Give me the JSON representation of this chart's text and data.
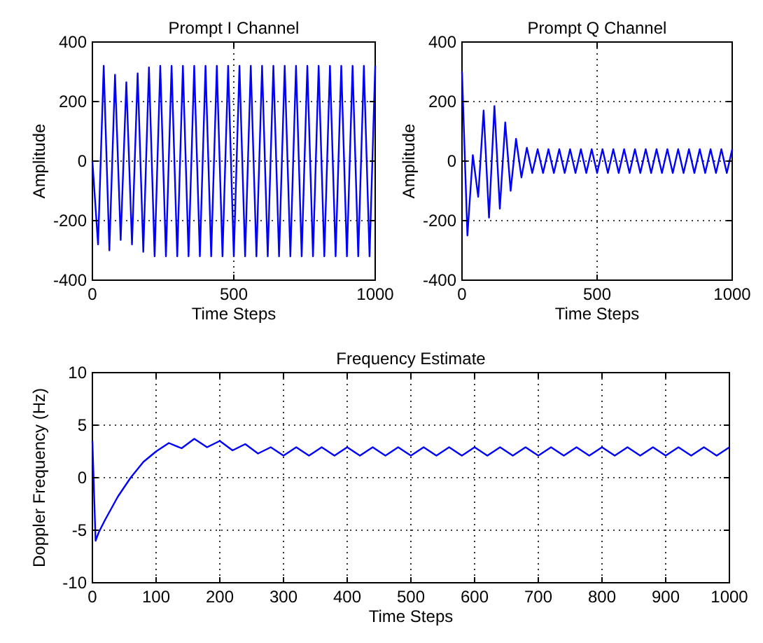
{
  "chart_data": [
    {
      "type": "line",
      "title": "Prompt I Channel",
      "xlabel": "Time Steps",
      "ylabel": "Amplitude",
      "xlim": [
        0,
        1000
      ],
      "ylim": [
        -400,
        400
      ],
      "xticks": [
        0,
        500,
        1000
      ],
      "yticks": [
        -400,
        -200,
        0,
        200,
        400
      ],
      "grid": true,
      "series": [
        {
          "color": "#0000ff",
          "x": [
            0,
            20,
            40,
            60,
            80,
            100,
            120,
            140,
            160,
            180,
            200,
            220,
            240,
            260,
            280,
            300,
            320,
            340,
            360,
            380,
            400,
            420,
            440,
            460,
            480,
            500,
            520,
            540,
            560,
            580,
            600,
            620,
            640,
            660,
            680,
            700,
            720,
            740,
            760,
            780,
            800,
            820,
            840,
            860,
            880,
            900,
            920,
            940,
            960,
            980,
            1000
          ],
          "values": [
            0,
            -280,
            320,
            -300,
            290,
            -265,
            265,
            -280,
            295,
            -305,
            315,
            -320,
            320,
            -320,
            320,
            -320,
            320,
            -320,
            320,
            -320,
            320,
            -320,
            320,
            -320,
            320,
            -320,
            320,
            -320,
            320,
            -320,
            320,
            -320,
            320,
            -320,
            320,
            -320,
            320,
            -320,
            320,
            -320,
            320,
            -320,
            320,
            -320,
            320,
            -320,
            320,
            -320,
            320,
            -320,
            320
          ]
        }
      ]
    },
    {
      "type": "line",
      "title": "Prompt Q Channel",
      "xlabel": "Time Steps",
      "ylabel": "Amplitude",
      "xlim": [
        0,
        1000
      ],
      "ylim": [
        -400,
        400
      ],
      "xticks": [
        0,
        500,
        1000
      ],
      "yticks": [
        -400,
        -200,
        0,
        200,
        400
      ],
      "grid": true,
      "series": [
        {
          "color": "#0000ff",
          "x": [
            0,
            20,
            40,
            60,
            80,
            100,
            120,
            140,
            160,
            180,
            200,
            220,
            240,
            260,
            280,
            300,
            320,
            340,
            360,
            380,
            400,
            420,
            440,
            460,
            480,
            500,
            520,
            540,
            560,
            580,
            600,
            620,
            640,
            660,
            680,
            700,
            720,
            740,
            760,
            780,
            800,
            820,
            840,
            860,
            880,
            900,
            920,
            940,
            960,
            980,
            1000
          ],
          "values": [
            300,
            -250,
            20,
            -120,
            170,
            -190,
            185,
            -160,
            130,
            -100,
            75,
            -55,
            45,
            -40,
            40,
            -40,
            40,
            -40,
            40,
            -40,
            40,
            -40,
            40,
            -40,
            40,
            -40,
            40,
            -40,
            40,
            -40,
            40,
            -40,
            40,
            -40,
            40,
            -40,
            40,
            -40,
            40,
            -40,
            40,
            -40,
            40,
            -40,
            40,
            -40,
            40,
            -40,
            40,
            -40,
            40
          ]
        }
      ]
    },
    {
      "type": "line",
      "title": "Frequency Estimate",
      "xlabel": "Time Steps",
      "ylabel": "Doppler Frequency (Hz)",
      "xlim": [
        0,
        1000
      ],
      "ylim": [
        -10,
        10
      ],
      "xticks": [
        0,
        100,
        200,
        300,
        400,
        500,
        600,
        700,
        800,
        900,
        1000
      ],
      "yticks": [
        -10,
        -5,
        0,
        5,
        10
      ],
      "grid": true,
      "series": [
        {
          "color": "#0000ff",
          "x": [
            0,
            5,
            10,
            20,
            40,
            60,
            80,
            100,
            120,
            140,
            160,
            180,
            200,
            220,
            240,
            260,
            280,
            300,
            320,
            340,
            360,
            380,
            400,
            420,
            440,
            460,
            480,
            500,
            520,
            540,
            560,
            580,
            600,
            620,
            640,
            660,
            680,
            700,
            720,
            740,
            760,
            780,
            800,
            820,
            840,
            860,
            880,
            900,
            920,
            940,
            960,
            980,
            1000
          ],
          "values": [
            3.5,
            -6,
            -5.2,
            -4,
            -1.8,
            0,
            1.5,
            2.5,
            3.3,
            2.8,
            3.7,
            2.9,
            3.5,
            2.6,
            3.2,
            2.3,
            2.9,
            2.1,
            2.9,
            2.1,
            2.9,
            2.1,
            2.9,
            2.1,
            2.9,
            2.1,
            2.9,
            2.1,
            2.9,
            2.1,
            2.9,
            2.1,
            2.9,
            2.1,
            2.9,
            2.1,
            2.9,
            2.1,
            2.9,
            2.1,
            2.9,
            2.1,
            2.9,
            2.1,
            2.9,
            2.1,
            2.9,
            2.1,
            2.9,
            2.1,
            2.9,
            2.1,
            2.9
          ]
        }
      ]
    }
  ]
}
